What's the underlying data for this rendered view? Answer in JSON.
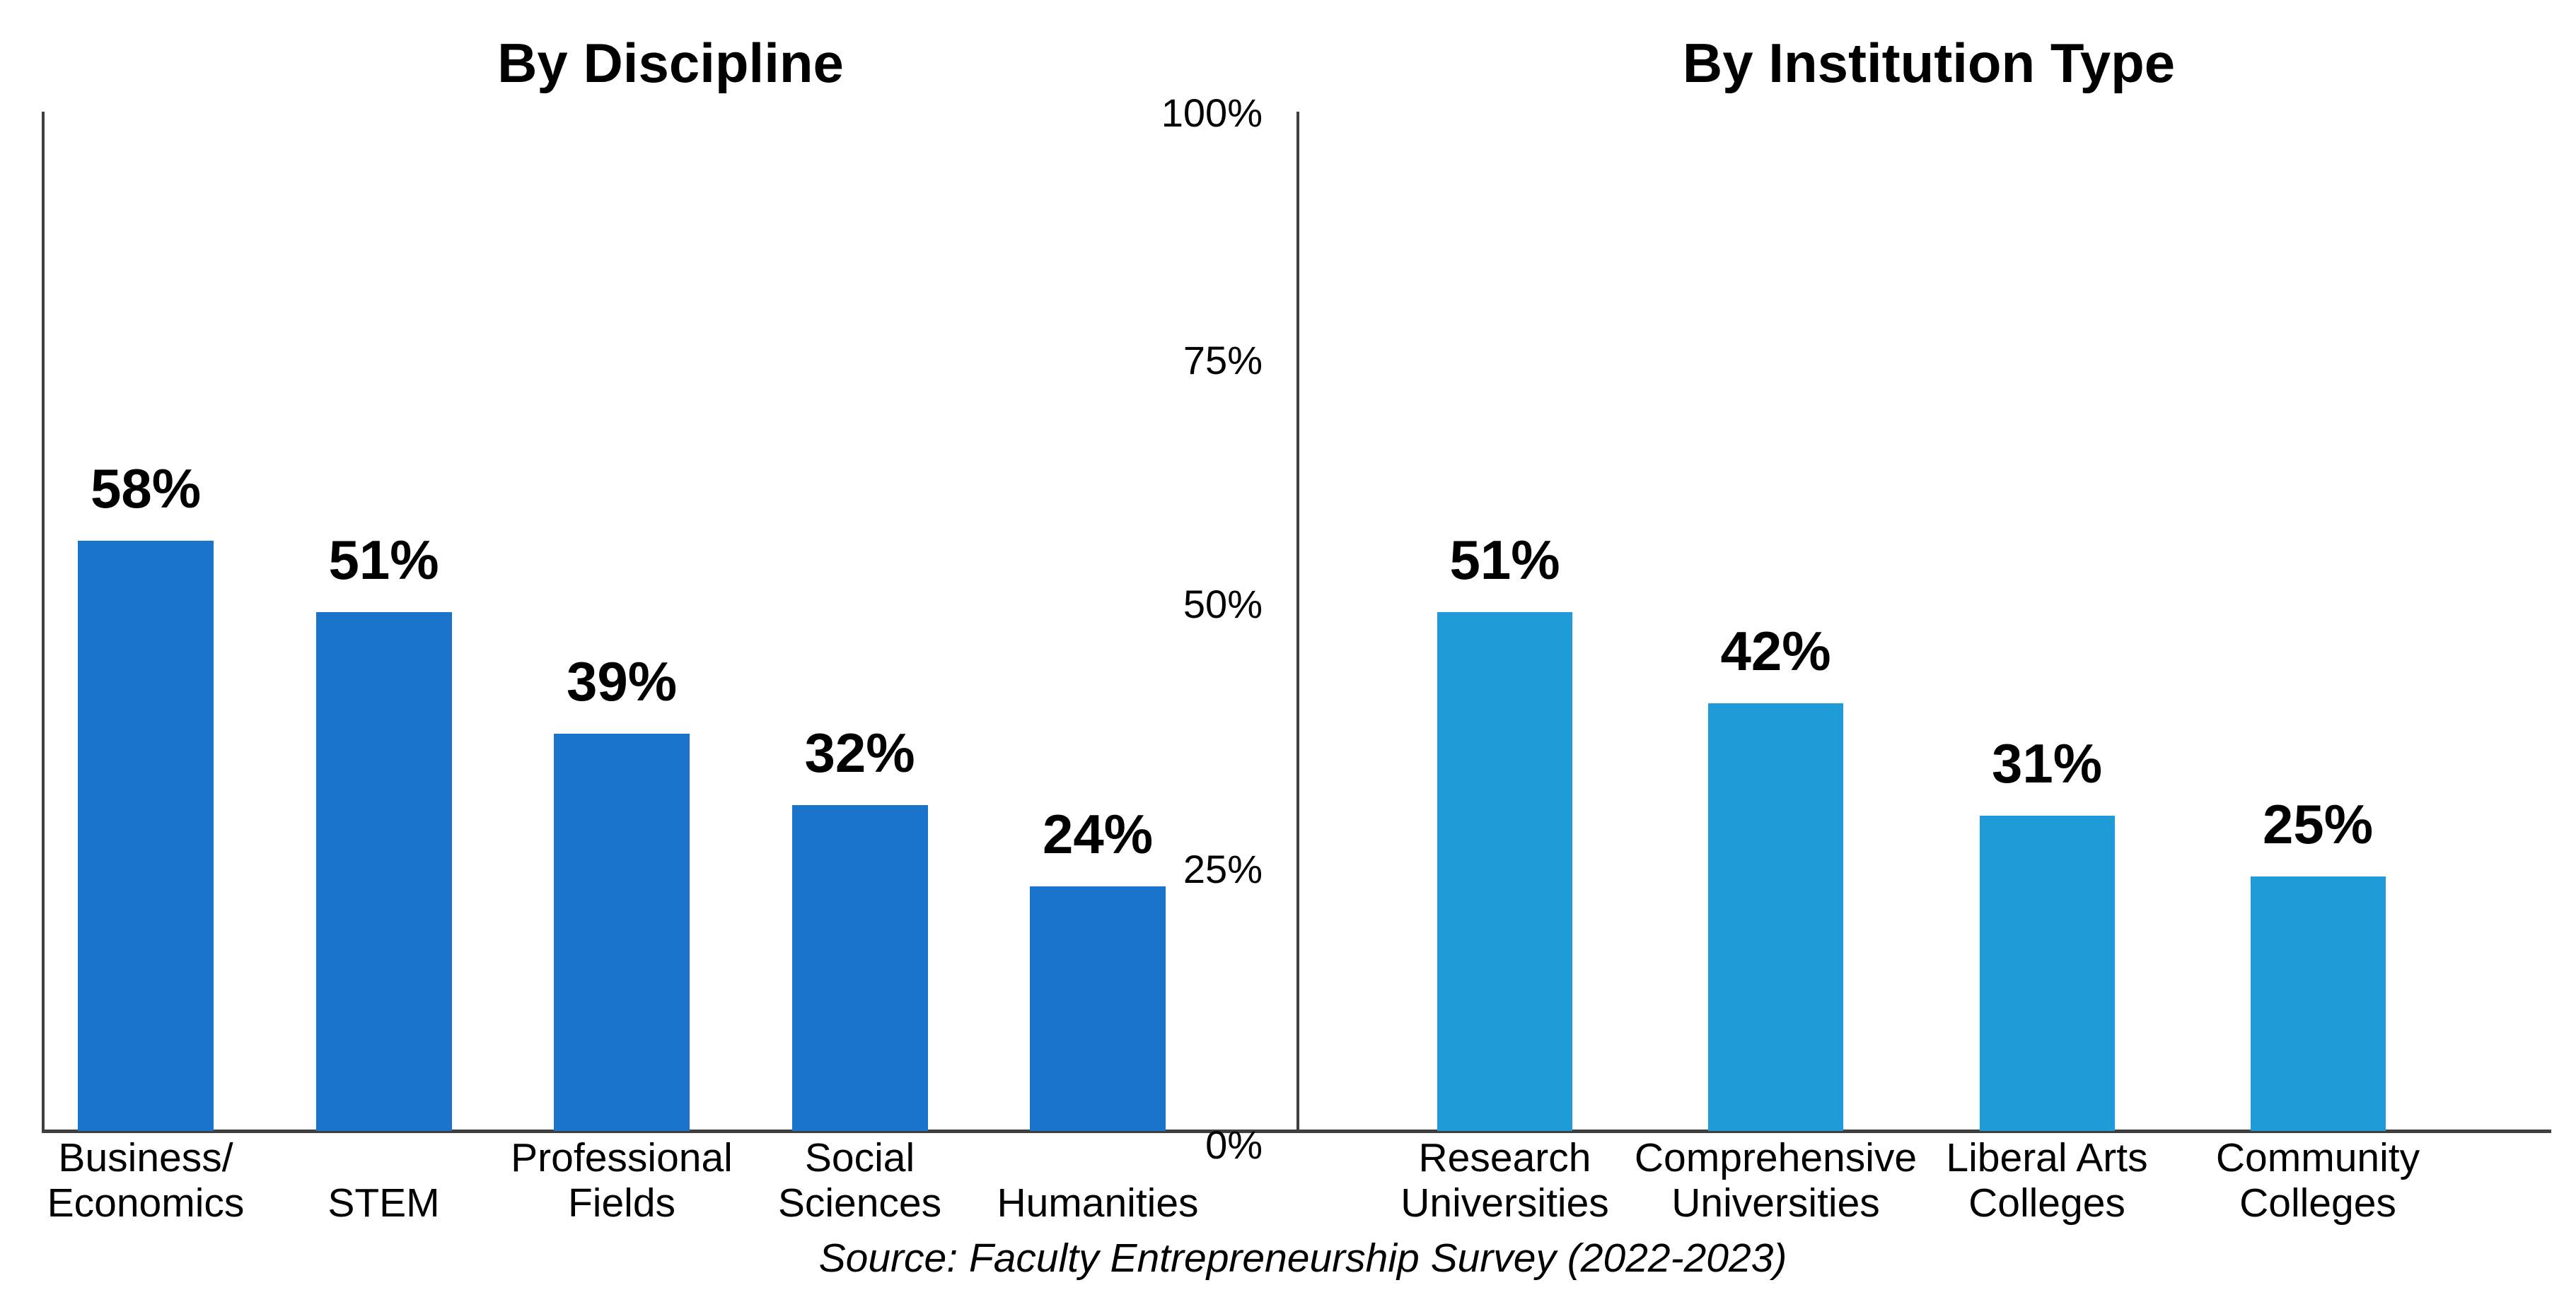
{
  "source_note": "Source: Faculty Entrepreneurship Survey (2022-2023)",
  "y_axis": {
    "ticks": [
      {
        "label": "100%",
        "value": 100
      },
      {
        "label": "75%",
        "value": 75
      },
      {
        "label": "50%",
        "value": 50
      },
      {
        "label": "25%",
        "value": 25
      },
      {
        "label": "0%",
        "value": 0
      }
    ],
    "ylim": [
      0,
      100
    ],
    "grid": false
  },
  "chart_data": [
    {
      "type": "bar",
      "title": "By Discipline",
      "categories": [
        "Business/\nEconomics",
        "STEM",
        "Professional\nFields",
        "Social\nSciences",
        "Humanities"
      ],
      "values": [
        58,
        51,
        39,
        32,
        24
      ],
      "value_labels": [
        "58%",
        "51%",
        "39%",
        "32%",
        "24%"
      ],
      "bar_color": "#1B74CB",
      "xlabel": "",
      "ylabel": "",
      "ylim": [
        0,
        100
      ]
    },
    {
      "type": "bar",
      "title": "By Institution Type",
      "categories": [
        "Research\nUniversities",
        "Comprehensive\nUniversities",
        "Liberal Arts\nColleges",
        "Community\nColleges"
      ],
      "values": [
        51,
        42,
        31,
        25
      ],
      "value_labels": [
        "51%",
        "42%",
        "31%",
        "25%"
      ],
      "bar_color": "#1F9CD8",
      "xlabel": "",
      "ylabel": "",
      "ylim": [
        0,
        100
      ]
    }
  ]
}
